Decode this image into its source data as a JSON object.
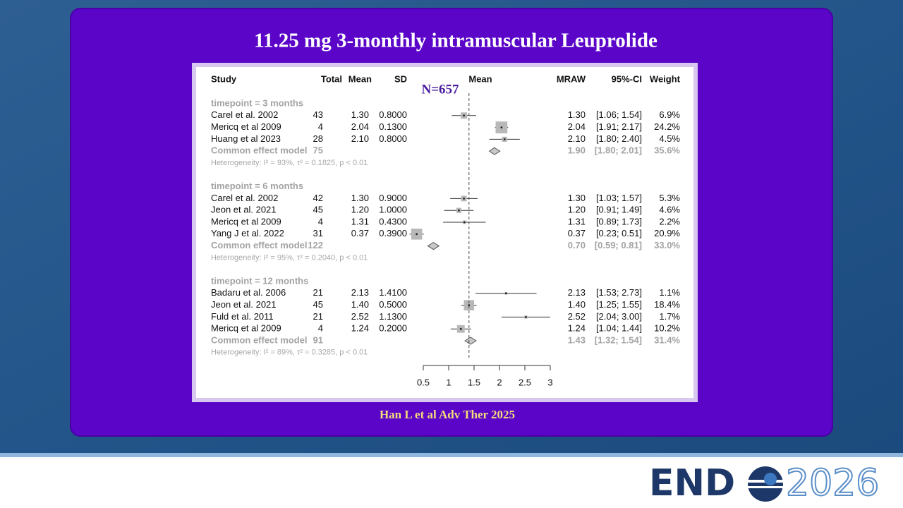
{
  "slide": {
    "title": "11.25 mg 3-monthly intramuscular Leuprolide",
    "citation": "Han L et al Adv Ther 2025"
  },
  "logo": {
    "left": "END",
    "right": "2026"
  },
  "chart_data": {
    "type": "forest",
    "annotation": "N=657",
    "headers": [
      "Study",
      "Total",
      "Mean",
      "SD",
      "Mean",
      "MRAW",
      "95%-CI",
      "Weight"
    ],
    "xlim": [
      0.5,
      3
    ],
    "xticks": [
      0.5,
      1,
      1.5,
      2,
      2.5,
      3
    ],
    "ref_line": 1.4,
    "groups": [
      {
        "label": "timepoint = 3 months",
        "studies": [
          "Carel et al. 2002",
          "Mericq et al 2009",
          "Huang et al 2023"
        ],
        "total": [
          43,
          4,
          28
        ],
        "mean": [
          "1.30",
          "2.04",
          "2.10"
        ],
        "sd": [
          "0.8000",
          "0.1300",
          "0.8000"
        ],
        "mraw": [
          1.3,
          2.04,
          2.1
        ],
        "mraw_labels": [
          "1.30",
          "2.04",
          "2.10"
        ],
        "lower": [
          1.06,
          1.91,
          1.8
        ],
        "upper": [
          1.54,
          2.17,
          2.4
        ],
        "ci_labels": [
          "[1.06; 1.54]",
          "[1.91; 2.17]",
          "[1.80; 2.40]"
        ],
        "weight": [
          6.9,
          24.2,
          4.5
        ],
        "weight_labels": [
          "6.9%",
          "24.2%",
          "4.5%"
        ],
        "common": {
          "label": "Common effect model",
          "total": 75,
          "mraw": 1.9,
          "mraw_label": "1.90",
          "lower": 1.8,
          "upper": 2.01,
          "ci_label": "[1.80; 2.01]",
          "weight_label": "35.6%"
        },
        "heterogeneity": "Heterogeneity: I² = 93%, τ² = 0.1825, p < 0.01"
      },
      {
        "label": "timepoint = 6 months",
        "studies": [
          "Carel et al. 2002",
          "Jeon et al. 2021",
          "Mericq et al 2009",
          "Yang J et al. 2022"
        ],
        "total": [
          42,
          45,
          4,
          31
        ],
        "mean": [
          "1.30",
          "1.20",
          "1.31",
          "0.37"
        ],
        "sd": [
          "0.9000",
          "1.0000",
          "0.4300",
          "0.3900"
        ],
        "mraw": [
          1.3,
          1.2,
          1.31,
          0.37
        ],
        "mraw_labels": [
          "1.30",
          "1.20",
          "1.31",
          "0.37"
        ],
        "lower": [
          1.03,
          0.91,
          0.89,
          0.23
        ],
        "upper": [
          1.57,
          1.49,
          1.73,
          0.51
        ],
        "ci_labels": [
          "[1.03; 1.57]",
          "[0.91; 1.49]",
          "[0.89; 1.73]",
          "[0.23; 0.51]"
        ],
        "weight": [
          5.3,
          4.6,
          2.2,
          20.9
        ],
        "weight_labels": [
          "5.3%",
          "4.6%",
          "2.2%",
          "20.9%"
        ],
        "common": {
          "label": "Common effect model",
          "total": 122,
          "mraw": 0.7,
          "mraw_label": "0.70",
          "lower": 0.59,
          "upper": 0.81,
          "ci_label": "[0.59; 0.81]",
          "weight_label": "33.0%"
        },
        "heterogeneity": "Heterogeneity: I² = 95%, τ² = 0.2040, p < 0.01"
      },
      {
        "label": "timepoint = 12 months",
        "studies": [
          "Badaru et al. 2006",
          "Jeon et al. 2021",
          "Fuld et al. 2011",
          "Mericq et al 2009"
        ],
        "total": [
          21,
          45,
          21,
          4
        ],
        "mean": [
          "2.13",
          "1.40",
          "2.52",
          "1.24"
        ],
        "sd": [
          "1.4100",
          "0.5000",
          "1.1300",
          "0.2000"
        ],
        "mraw": [
          2.13,
          1.4,
          2.52,
          1.24
        ],
        "mraw_labels": [
          "2.13",
          "1.40",
          "2.52",
          "1.24"
        ],
        "lower": [
          1.53,
          1.25,
          2.04,
          1.04
        ],
        "upper": [
          2.73,
          1.55,
          3.0,
          1.44
        ],
        "ci_labels": [
          "[1.53; 2.73]",
          "[1.25; 1.55]",
          "[2.04; 3.00]",
          "[1.04; 1.44]"
        ],
        "weight": [
          1.1,
          18.4,
          1.7,
          10.2
        ],
        "weight_labels": [
          "1.1%",
          "18.4%",
          "1.7%",
          "10.2%"
        ],
        "common": {
          "label": "Common effect model",
          "total": 91,
          "mraw": 1.43,
          "mraw_label": "1.43",
          "lower": 1.32,
          "upper": 1.54,
          "ci_label": "[1.32; 1.54]",
          "weight_label": "31.4%"
        },
        "heterogeneity": "Heterogeneity: I² = 89%, τ² = 0.3285, p < 0.01"
      }
    ]
  }
}
